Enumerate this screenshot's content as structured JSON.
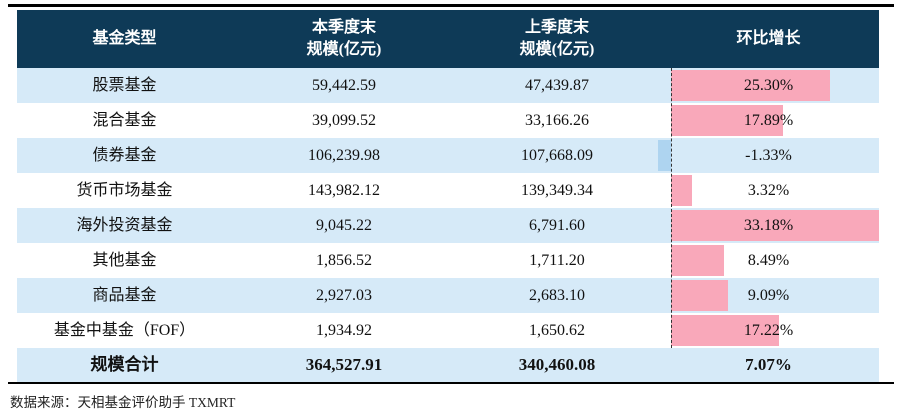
{
  "table": {
    "columns": [
      {
        "label": "基金类型",
        "label2": ""
      },
      {
        "label": "本季度末",
        "label2": "规模(亿元)"
      },
      {
        "label": "上季度末",
        "label2": "规模(亿元)"
      },
      {
        "label": "环比增长",
        "label2": ""
      }
    ],
    "rows": [
      {
        "type": "股票基金",
        "current": "59,442.59",
        "previous": "47,439.87",
        "growth": "25.30%",
        "growth_value": 25.3
      },
      {
        "type": "混合基金",
        "current": "39,099.52",
        "previous": "33,166.26",
        "growth": "17.89%",
        "growth_value": 17.89
      },
      {
        "type": "债券基金",
        "current": "106,239.98",
        "previous": "107,668.09",
        "growth": "-1.33%",
        "growth_value": -1.33
      },
      {
        "type": "货币市场基金",
        "current": "143,982.12",
        "previous": "139,349.34",
        "growth": "3.32%",
        "growth_value": 3.32
      },
      {
        "type": "海外投资基金",
        "current": "9,045.22",
        "previous": "6,791.60",
        "growth": "33.18%",
        "growth_value": 33.18
      },
      {
        "type": "其他基金",
        "current": "1,856.52",
        "previous": "1,711.20",
        "growth": "8.49%",
        "growth_value": 8.49
      },
      {
        "type": "商品基金",
        "current": "2,927.03",
        "previous": "2,683.10",
        "growth": "9.09%",
        "growth_value": 9.09
      },
      {
        "type": "基金中基金（FOF）",
        "current": "1,934.92",
        "previous": "1,650.62",
        "growth": "17.22%",
        "growth_value": 17.22
      }
    ],
    "total": {
      "type": "规模合计",
      "current": "364,527.91",
      "previous": "340,460.08",
      "growth": "7.07%"
    }
  },
  "source": "数据来源：天相基金评价助手 TXMRT",
  "colors": {
    "header_bg": "#0e3a57",
    "header_text": "#ffffff",
    "row_alt_bg": "#d6eaf8",
    "bar_positive": "#f9a8ba",
    "bar_negative": "#aed4f0",
    "rule": "#000000"
  },
  "chart_data": {
    "type": "table",
    "title": "基金规模环比统计表",
    "columns": [
      "基金类型",
      "本季度末规模(亿元)",
      "上季度末规模(亿元)",
      "环比增长"
    ],
    "rows": [
      [
        "股票基金",
        59442.59,
        47439.87,
        25.3
      ],
      [
        "混合基金",
        39099.52,
        33166.26,
        17.89
      ],
      [
        "债券基金",
        106239.98,
        107668.09,
        -1.33
      ],
      [
        "货币市场基金",
        143982.12,
        139349.34,
        3.32
      ],
      [
        "海外投资基金",
        9045.22,
        6791.6,
        33.18
      ],
      [
        "其他基金",
        1856.52,
        1711.2,
        8.49
      ],
      [
        "商品基金",
        2927.03,
        2683.1,
        9.09
      ],
      [
        "基金中基金（FOF）",
        1934.92,
        1650.62,
        17.22
      ]
    ],
    "total_row": [
      "规模合计",
      364527.91,
      340460.08,
      7.07
    ],
    "growth_unit": "%",
    "databar": {
      "column": "环比增长",
      "min": -1.33,
      "max": 33.18,
      "axis": "dashed-zero-line",
      "positive_color": "#f9a8ba",
      "negative_color": "#aed4f0"
    },
    "source": "数据来源：天相基金评价助手 TXMRT"
  }
}
